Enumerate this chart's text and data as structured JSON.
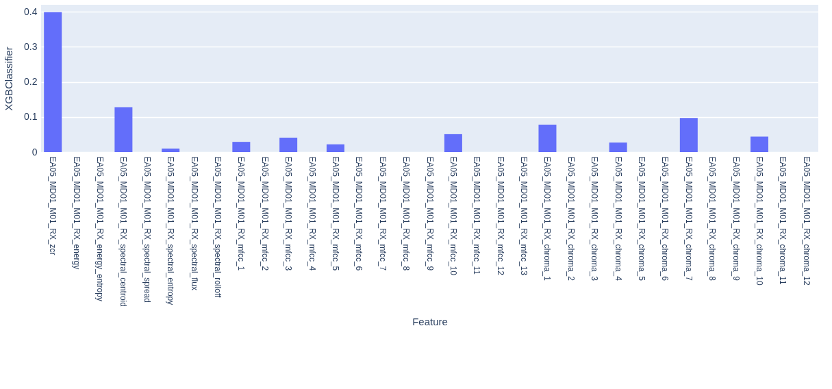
{
  "chart_data": {
    "type": "bar",
    "xlabel": "Feature",
    "ylabel": "XGBClassifier",
    "categories": [
      "EA05_MD01_M01_RX_zcr",
      "EA05_MD01_M01_RX_energy",
      "EA05_MD01_M01_RX_energy_entropy",
      "EA05_MD01_M01_RX_spectral_centroid",
      "EA05_MD01_M01_RX_spectral_spread",
      "EA05_MD01_M01_RX_spectral_entropy",
      "EA05_MD01_M01_RX_spectral_flux",
      "EA05_MD01_M01_RX_spectral_rolloff",
      "EA05_MD01_M01_RX_mfcc_1",
      "EA05_MD01_M01_RX_mfcc_2",
      "EA05_MD01_M01_RX_mfcc_3",
      "EA05_MD01_M01_RX_mfcc_4",
      "EA05_MD01_M01_RX_mfcc_5",
      "EA05_MD01_M01_RX_mfcc_6",
      "EA05_MD01_M01_RX_mfcc_7",
      "EA05_MD01_M01_RX_mfcc_8",
      "EA05_MD01_M01_RX_mfcc_9",
      "EA05_MD01_M01_RX_mfcc_10",
      "EA05_MD01_M01_RX_mfcc_11",
      "EA05_MD01_M01_RX_mfcc_12",
      "EA05_MD01_M01_RX_mfcc_13",
      "EA05_MD01_M01_RX_chroma_1",
      "EA05_MD01_M01_RX_chroma_2",
      "EA05_MD01_M01_RX_chroma_3",
      "EA05_MD01_M01_RX_chroma_4",
      "EA05_MD01_M01_RX_chroma_5",
      "EA05_MD01_M01_RX_chroma_6",
      "EA05_MD01_M01_RX_chroma_7",
      "EA05_MD01_M01_RX_chroma_8",
      "EA05_MD01_M01_RX_chroma_9",
      "EA05_MD01_M01_RX_chroma_10",
      "EA05_MD01_M01_RX_chroma_11",
      "EA05_MD01_M01_RX_chroma_12"
    ],
    "values": [
      0.399,
      0,
      0,
      0.128,
      0,
      0.01,
      0,
      0,
      0.029,
      0,
      0.041,
      0,
      0.022,
      0,
      0,
      0,
      0,
      0.051,
      0,
      0,
      0,
      0.078,
      0,
      0,
      0.027,
      0,
      0,
      0.097,
      0,
      0,
      0.044,
      0,
      0
    ],
    "color": "#636efa",
    "ylim": [
      0,
      0.42
    ],
    "yticks": [
      0,
      0.1,
      0.2,
      0.3,
      0.4
    ],
    "grid": "y"
  }
}
